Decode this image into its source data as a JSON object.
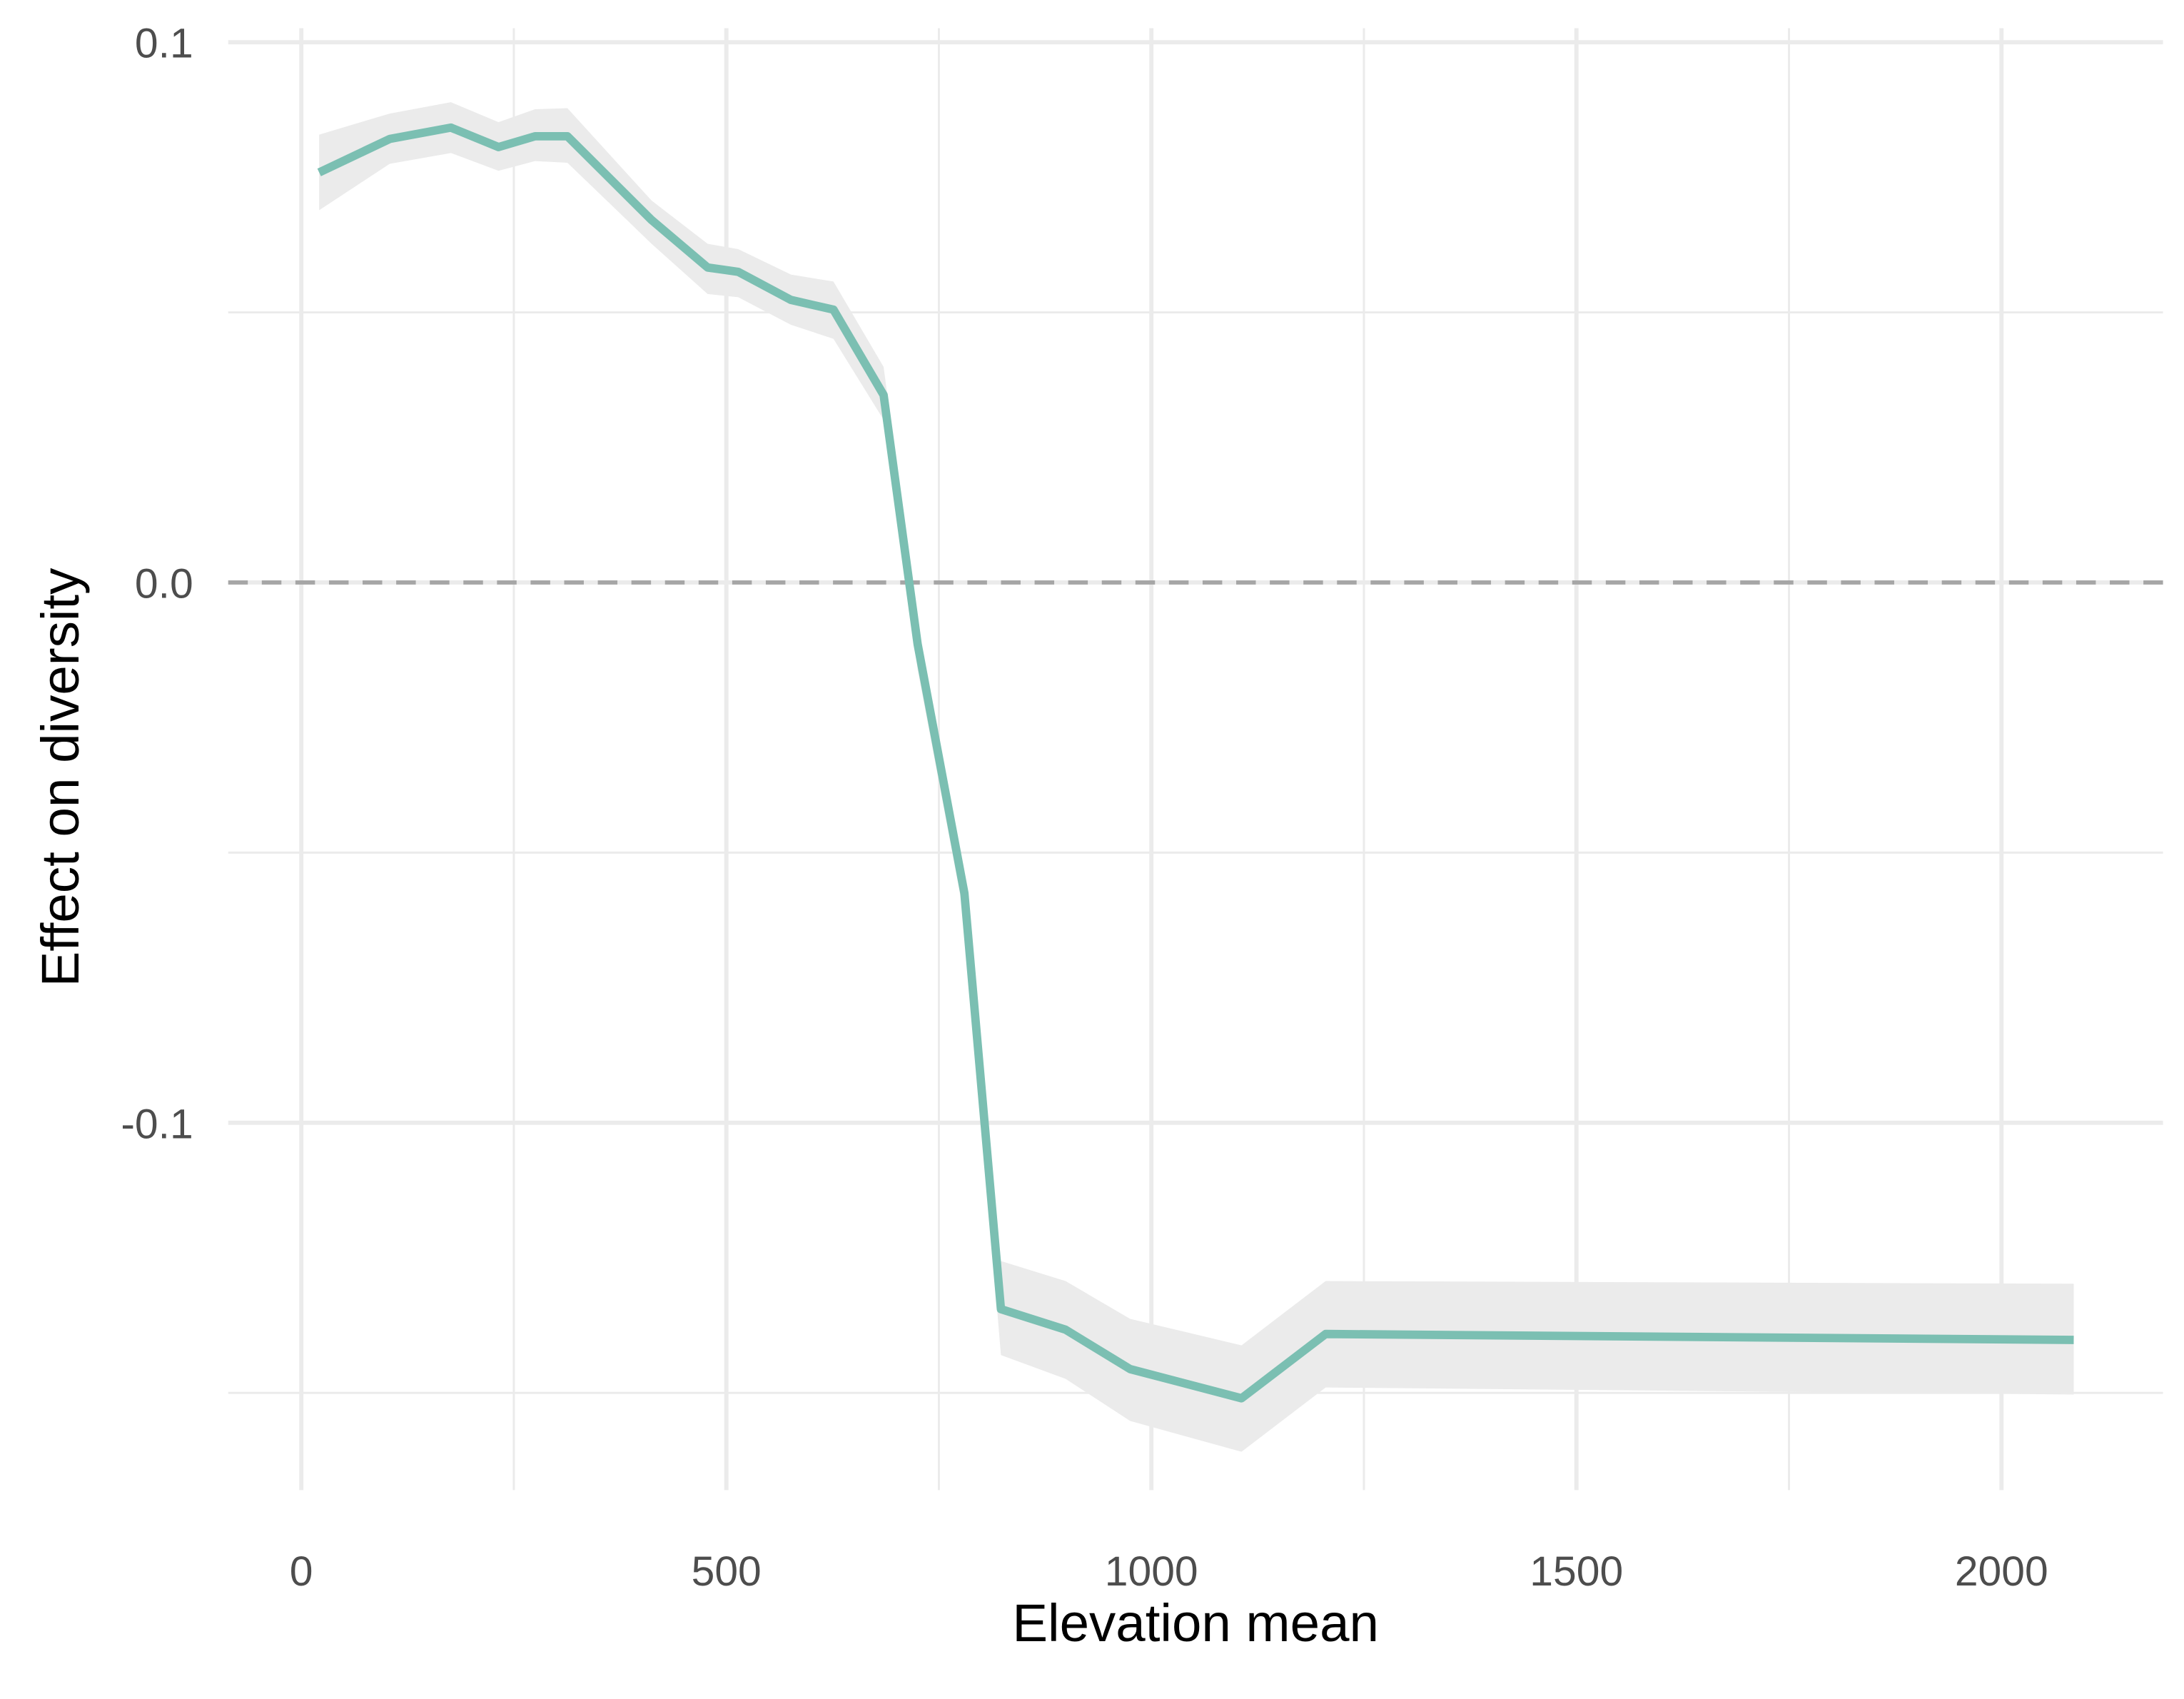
{
  "chart_data": {
    "type": "line",
    "x_label": "Elevation mean",
    "y_label": "Effect on diversity",
    "x": [
      21,
      104,
      176,
      232,
      275,
      313,
      412,
      478,
      514,
      576,
      626,
      685,
      725,
      780,
      823,
      899,
      975,
      1106,
      1205,
      2085
    ],
    "values": [
      0.0759,
      0.0821,
      0.0842,
      0.0806,
      0.0826,
      0.0826,
      0.0671,
      0.0583,
      0.0575,
      0.0523,
      0.0505,
      0.0347,
      -0.0114,
      -0.0575,
      -0.1345,
      -0.1383,
      -0.1456,
      -0.151,
      -0.1391,
      -0.1402
    ],
    "band_upper": [
      0.0829,
      0.0868,
      0.0889,
      0.0852,
      0.0876,
      0.0878,
      0.0707,
      0.0627,
      0.0617,
      0.057,
      0.0557,
      0.0399,
      -0.0075,
      -0.0541,
      -0.1256,
      -0.1293,
      -0.1363,
      -0.1412,
      -0.1293,
      -0.1298
    ],
    "band_lower": [
      0.0689,
      0.0775,
      0.0795,
      0.0762,
      0.078,
      0.0777,
      0.0627,
      0.0534,
      0.0528,
      0.0477,
      0.0451,
      0.0301,
      -0.0161,
      -0.0619,
      -0.143,
      -0.1474,
      -0.1552,
      -0.1609,
      -0.149,
      -0.1503
    ],
    "color": "#7bbfb2",
    "band_color": "#ebebeb",
    "xlim": [
      -86,
      2190
    ],
    "ylim": [
      -0.168,
      0.1
    ],
    "xticks": [
      0,
      500,
      1000,
      1500,
      2000
    ],
    "yticks": [
      {
        "value": -0.1,
        "label": "-0.1"
      },
      {
        "value": 0,
        "label": "0.0"
      },
      0.1
    ],
    "x_minor_ticks": [
      250,
      750,
      1250,
      1750
    ],
    "y_minor_ticks": [
      -0.15,
      -0.05,
      0.05
    ],
    "hline": 0,
    "grid": true
  }
}
